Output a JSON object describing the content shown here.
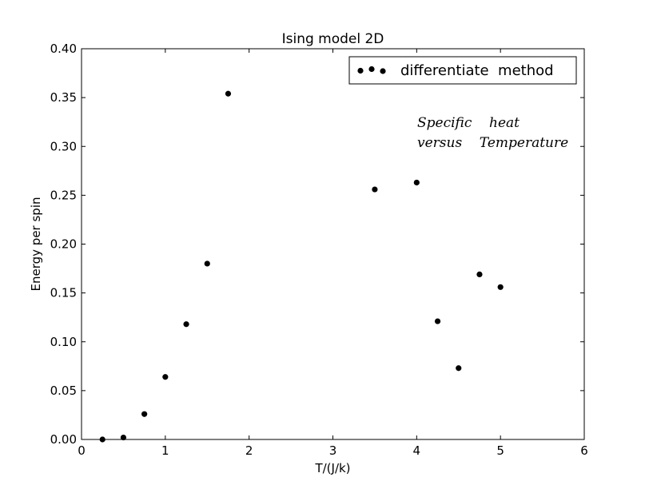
{
  "chart_data": {
    "type": "scatter",
    "title": "Ising model 2D",
    "xlabel": "T/(J/k)",
    "ylabel": "Energy per spin",
    "xlim": [
      0,
      6
    ],
    "ylim": [
      0.0,
      0.4
    ],
    "xticks": [
      "0",
      "1",
      "2",
      "3",
      "4",
      "5",
      "6"
    ],
    "yticks": [
      "0.00",
      "0.05",
      "0.10",
      "0.15",
      "0.20",
      "0.25",
      "0.30",
      "0.35",
      "0.40"
    ],
    "grid": false,
    "legend_position": "top-right",
    "series": [
      {
        "name": "differentiate  method",
        "color": "#000000",
        "marker": "circle",
        "x": [
          0.25,
          0.5,
          0.75,
          1.0,
          1.25,
          1.5,
          1.75,
          3.5,
          4.0,
          4.25,
          4.5,
          4.75,
          5.0
        ],
        "y": [
          0.0,
          0.002,
          0.026,
          0.064,
          0.118,
          0.18,
          0.354,
          0.256,
          0.263,
          0.121,
          0.073,
          0.169,
          0.156
        ]
      }
    ],
    "annotations": [
      {
        "line1": "Specific    heat",
        "line2": "versus    Temperature",
        "color": "#0000ff"
      }
    ]
  }
}
